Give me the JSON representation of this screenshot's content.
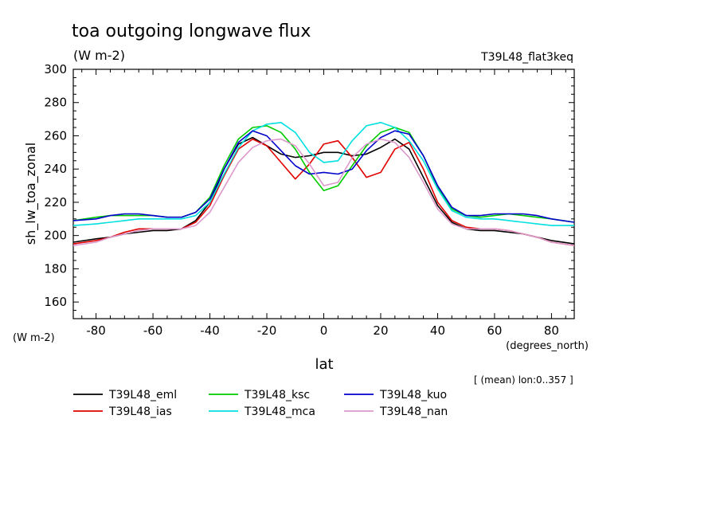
{
  "chart_data": {
    "type": "line",
    "title": "toa outgoing longwave flux",
    "units": "(W m-2)",
    "experiment": "T39L48_flat3keq",
    "ylabel": "sh_lw_toa_zonal",
    "yunits": "(W m-2)",
    "xlabel": "lat",
    "xunits": "(degrees_north)",
    "note": "[ (mean) lon:0..357 ]",
    "xlim": [
      -88,
      88
    ],
    "ylim": [
      150,
      300
    ],
    "xticks": [
      -80,
      -60,
      -40,
      -20,
      0,
      20,
      40,
      60,
      80
    ],
    "yticks": [
      160,
      180,
      200,
      220,
      240,
      260,
      280,
      300
    ],
    "grid": false,
    "legend_position": "bottom-left",
    "x": [
      -88,
      -80,
      -75,
      -70,
      -65,
      -60,
      -55,
      -50,
      -45,
      -40,
      -35,
      -30,
      -25,
      -20,
      -15,
      -10,
      -5,
      0,
      5,
      10,
      15,
      20,
      25,
      30,
      35,
      40,
      45,
      50,
      55,
      60,
      65,
      70,
      75,
      80,
      88
    ],
    "series": [
      {
        "name": "T39L48_eml",
        "color": "#000000",
        "values": [
          196,
          198,
          199,
          201,
          202,
          203,
          203,
          204,
          209,
          220,
          240,
          255,
          259,
          254,
          249,
          247,
          248,
          250,
          250,
          248,
          249,
          253,
          258,
          252,
          235,
          218,
          208,
          204,
          203,
          203,
          202,
          201,
          199,
          197,
          195
        ]
      },
      {
        "name": "T39L48_ias",
        "color": "#e00000",
        "values": [
          195,
          197,
          199,
          202,
          204,
          204,
          204,
          204,
          208,
          218,
          236,
          252,
          258,
          254,
          244,
          234,
          243,
          255,
          257,
          247,
          235,
          238,
          252,
          256,
          240,
          220,
          209,
          205,
          204,
          204,
          203,
          201,
          199,
          196,
          194
        ]
      },
      {
        "name": "T39L48_ksc",
        "color": "#00cc00",
        "values": [
          209,
          211,
          212,
          212,
          212,
          212,
          211,
          211,
          214,
          223,
          242,
          258,
          265,
          266,
          262,
          252,
          238,
          227,
          230,
          242,
          254,
          262,
          265,
          262,
          248,
          229,
          216,
          212,
          211,
          212,
          213,
          212,
          211,
          210,
          208
        ]
      },
      {
        "name": "T39L48_mca",
        "color": "#00e0e0",
        "values": [
          206,
          207,
          208,
          209,
          210,
          210,
          210,
          210,
          212,
          220,
          237,
          253,
          263,
          267,
          268,
          262,
          250,
          244,
          245,
          257,
          266,
          268,
          265,
          257,
          245,
          228,
          215,
          211,
          210,
          210,
          209,
          208,
          207,
          206,
          206
        ]
      },
      {
        "name": "T39L48_kuo",
        "color": "#0000cc",
        "values": [
          209,
          210,
          212,
          213,
          213,
          212,
          211,
          211,
          214,
          222,
          240,
          256,
          263,
          260,
          251,
          242,
          237,
          238,
          237,
          240,
          251,
          259,
          263,
          261,
          248,
          230,
          217,
          212,
          212,
          213,
          213,
          213,
          212,
          210,
          208
        ]
      },
      {
        "name": "T39L48_nan",
        "color": "#dd99cc",
        "values": [
          194,
          196,
          199,
          201,
          203,
          204,
          204,
          204,
          206,
          214,
          229,
          244,
          253,
          257,
          258,
          254,
          243,
          230,
          232,
          247,
          255,
          258,
          256,
          247,
          232,
          216,
          207,
          204,
          204,
          204,
          203,
          201,
          199,
          196,
          194
        ]
      }
    ]
  }
}
